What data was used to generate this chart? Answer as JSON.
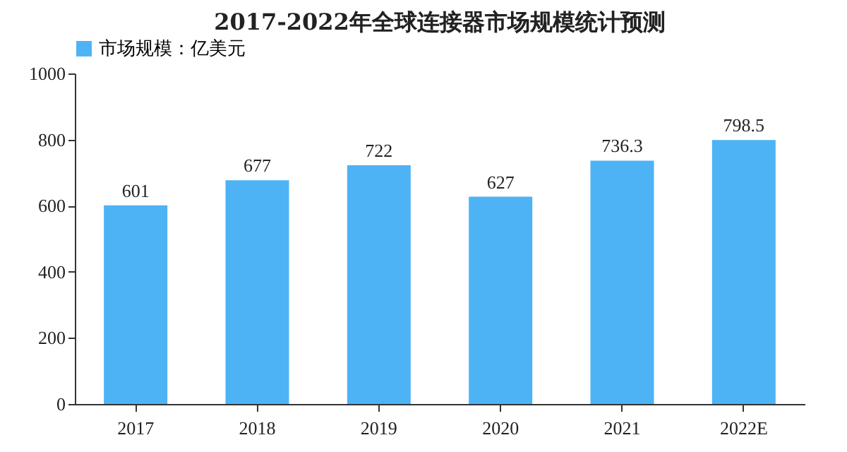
{
  "chart_data": {
    "type": "bar",
    "title": "2017-2022年全球连接器市场规模统计预测",
    "categories": [
      "2017",
      "2018",
      "2019",
      "2020",
      "2021",
      "2022E"
    ],
    "series": [
      {
        "name": "市场规模：亿美元",
        "color": "#4db3f5",
        "values": [
          601,
          677,
          722,
          627,
          736.3,
          798.5
        ]
      }
    ],
    "ylim": [
      0,
      1000
    ],
    "yticks": [
      0,
      200,
      400,
      600,
      800,
      1000
    ],
    "grid": false,
    "legend": "top",
    "data_labels": true
  }
}
